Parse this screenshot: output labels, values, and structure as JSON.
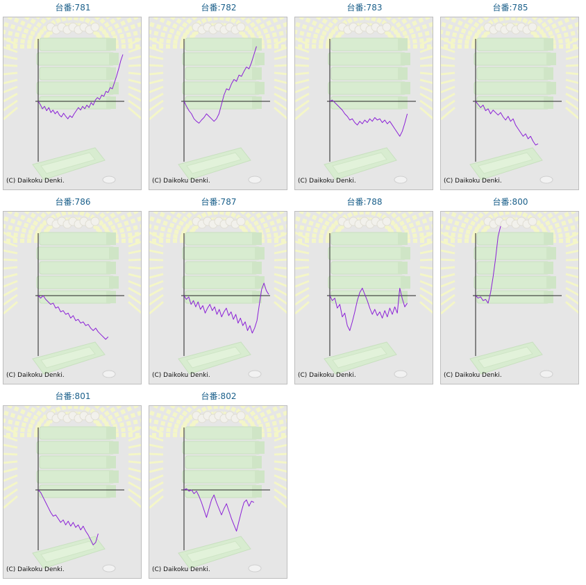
{
  "colors": {
    "title": "#1a5f8a",
    "line": "#8a1fd6",
    "axis": "#222222",
    "panel_bg": "#e6e6e6"
  },
  "chart_data": [
    {
      "type": "line",
      "title": "台番:781",
      "credit": "(C) Daikoku Denki.",
      "series": [
        {
          "values": [
            0,
            -5,
            -12,
            -8,
            -15,
            -10,
            -18,
            -14,
            -20,
            -16,
            -22,
            -25,
            -19,
            -24,
            -28,
            -23,
            -26,
            -20,
            -15,
            -10,
            -14,
            -8,
            -12,
            -6,
            -10,
            -2,
            -6,
            2,
            6,
            3,
            10,
            8,
            16,
            14,
            22,
            20,
            30,
            40,
            52,
            65,
            75
          ]
        }
      ]
    },
    {
      "type": "line",
      "title": "台番:782",
      "credit": "(C) Daikoku Denki.",
      "series": [
        {
          "values": [
            0,
            -8,
            -15,
            -20,
            -28,
            -32,
            -35,
            -30,
            -26,
            -20,
            -24,
            -28,
            -32,
            -28,
            -20,
            -5,
            10,
            20,
            18,
            28,
            35,
            32,
            42,
            40,
            48,
            55,
            52,
            62,
            75,
            88
          ]
        }
      ]
    },
    {
      "type": "line",
      "title": "台番:783",
      "credit": "(C) Daikoku Denki.",
      "series": [
        {
          "values": [
            0,
            2,
            -2,
            -6,
            -10,
            -14,
            -20,
            -24,
            -30,
            -28,
            -34,
            -38,
            -32,
            -36,
            -30,
            -34,
            -28,
            -32,
            -26,
            -30,
            -28,
            -34,
            -30,
            -36,
            -32,
            -38,
            -44,
            -50,
            -56,
            -48,
            -35,
            -20
          ]
        }
      ]
    },
    {
      "type": "line",
      "title": "台番:785",
      "credit": "(C) Daikoku Denki.",
      "series": [
        {
          "values": [
            0,
            -5,
            -10,
            -6,
            -15,
            -12,
            -20,
            -14,
            -18,
            -22,
            -18,
            -25,
            -30,
            -24,
            -32,
            -28,
            -38,
            -44,
            -50,
            -56,
            -52,
            -60,
            -56,
            -64,
            -70,
            -68
          ]
        }
      ]
    },
    {
      "type": "line",
      "title": "台番:786",
      "credit": "(C) Daikoku Denki.",
      "series": [
        {
          "values": [
            0,
            -4,
            0,
            -6,
            -10,
            -14,
            -12,
            -20,
            -18,
            -26,
            -24,
            -30,
            -28,
            -36,
            -32,
            -40,
            -38,
            -44,
            -42,
            -48,
            -46,
            -52,
            -56,
            -52,
            -58,
            -62,
            -66,
            -70,
            -66
          ]
        }
      ]
    },
    {
      "type": "line",
      "title": "台番:787",
      "credit": "(C) Daikoku Denki.",
      "series": [
        {
          "values": [
            0,
            -6,
            -2,
            -14,
            -8,
            -18,
            -10,
            -22,
            -16,
            -28,
            -20,
            -14,
            -24,
            -18,
            -30,
            -22,
            -34,
            -26,
            -20,
            -32,
            -26,
            -38,
            -30,
            -44,
            -36,
            -48,
            -42,
            -56,
            -48,
            -60,
            -52,
            -40,
            -15,
            10,
            20,
            8,
            2
          ]
        }
      ]
    },
    {
      "type": "line",
      "title": "台番:788",
      "credit": "(C) Daikoku Denki.",
      "series": [
        {
          "values": [
            0,
            -8,
            -4,
            -20,
            -14,
            -34,
            -28,
            -48,
            -56,
            -42,
            -26,
            -8,
            5,
            12,
            2,
            -8,
            -20,
            -30,
            -22,
            -32,
            -26,
            -36,
            -24,
            -34,
            -20,
            -30,
            -18,
            -28,
            12,
            -5,
            -18,
            -12
          ]
        }
      ]
    },
    {
      "type": "line",
      "title": "台番:800",
      "credit": "(C) Daikoku Denki.",
      "series": [
        {
          "values": [
            0,
            -4,
            -2,
            -8,
            -6,
            -12,
            5,
            30,
            60,
            95,
            130
          ]
        }
      ]
    },
    {
      "type": "line",
      "title": "台番:801",
      "credit": "(C) Daikoku Denki.",
      "series": [
        {
          "values": [
            0,
            -4,
            -12,
            -20,
            -28,
            -36,
            -42,
            -40,
            -46,
            -52,
            -48,
            -56,
            -50,
            -58,
            -52,
            -60,
            -56,
            -64,
            -58,
            -66,
            -72,
            -80,
            -88,
            -84,
            -70
          ]
        }
      ]
    },
    {
      "type": "line",
      "title": "台番:802",
      "credit": "(C) Daikoku Denki.",
      "series": [
        {
          "values": [
            0,
            2,
            -2,
            0,
            -6,
            -2,
            -10,
            -20,
            -32,
            -44,
            -30,
            -16,
            -8,
            -20,
            -30,
            -40,
            -30,
            -22,
            -34,
            -46,
            -56,
            -66,
            -50,
            -34,
            -20,
            -16,
            -26,
            -18,
            -20
          ]
        }
      ]
    }
  ]
}
